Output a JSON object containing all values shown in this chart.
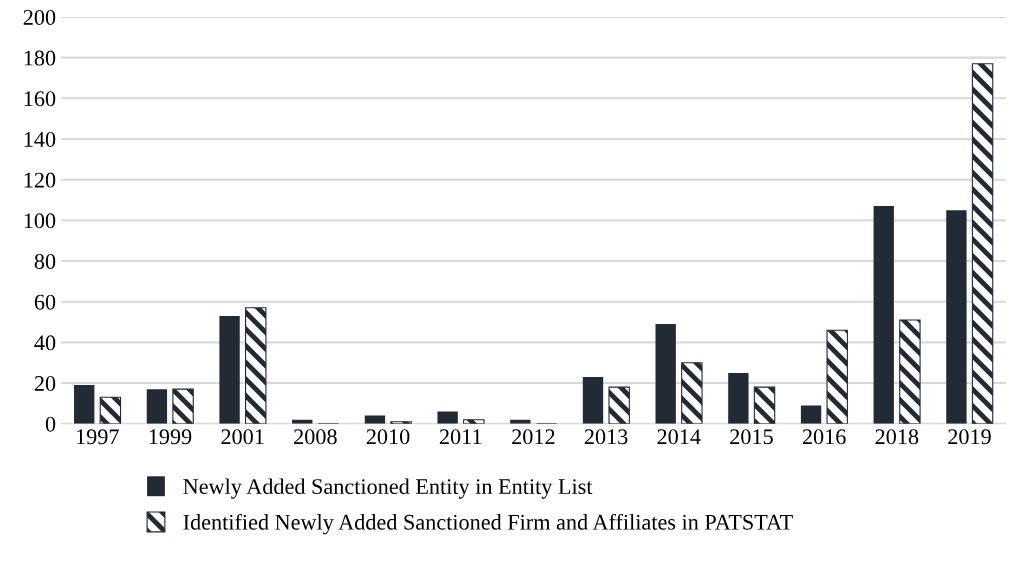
{
  "chart_data": {
    "type": "bar",
    "categories": [
      "1997",
      "1999",
      "2001",
      "2008",
      "2010",
      "2011",
      "2012",
      "2013",
      "2014",
      "2015",
      "2016",
      "2018",
      "2019"
    ],
    "series": [
      {
        "name": "Newly Added Sanctioned Entity in Entity List",
        "color": "#222a35",
        "values": [
          19,
          17,
          53,
          2,
          4,
          6,
          2,
          23,
          49,
          25,
          9,
          107,
          105
        ]
      },
      {
        "name": "Identified Newly Added Sanctioned Firm and Affiliates in PATSTAT",
        "color": "#222a35",
        "values": [
          13,
          17,
          57,
          0,
          1,
          2,
          0,
          18,
          30,
          18,
          46,
          51,
          177
        ]
      }
    ],
    "ylim": [
      0,
      200
    ],
    "yticks": [
      0,
      20,
      40,
      60,
      80,
      100,
      120,
      140,
      160,
      180,
      200
    ],
    "grid": "y",
    "legend": "bottom"
  }
}
